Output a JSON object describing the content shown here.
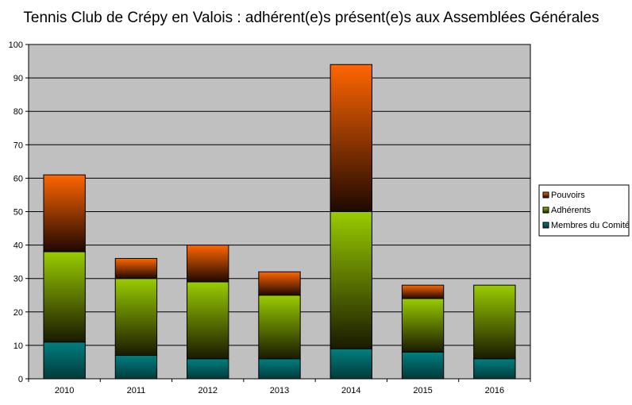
{
  "chart_data": {
    "type": "bar",
    "stacked": true,
    "title": "Tennis Club de Crépy en Valois : adhérent(e)s présent(e)s aux Assemblées Générales",
    "categories": [
      "2010",
      "2011",
      "2012",
      "2013",
      "2014",
      "2015",
      "2016"
    ],
    "series": [
      {
        "name": "Membres du Comité",
        "values": [
          11,
          7,
          6,
          6,
          9,
          8,
          6
        ],
        "color_top": "#007f80",
        "color_bottom": "#003b3c"
      },
      {
        "name": "Adhérents",
        "values": [
          27,
          23,
          23,
          19,
          41,
          16,
          22
        ],
        "color_top": "#99cc00",
        "color_bottom": "#1a1a00"
      },
      {
        "name": "Pouvoirs",
        "values": [
          23,
          6,
          11,
          7,
          44,
          4,
          0
        ],
        "color_top": "#ff6600",
        "color_bottom": "#1f0800"
      }
    ],
    "ylim": [
      0,
      100
    ],
    "yticks": [
      0,
      10,
      20,
      30,
      40,
      50,
      60,
      70,
      80,
      90,
      100
    ],
    "grid": true,
    "legend_position": "right",
    "legend_order": [
      "Pouvoirs",
      "Adhérents",
      "Membres du Comité"
    ],
    "plot_background": "#c0c0c0"
  }
}
